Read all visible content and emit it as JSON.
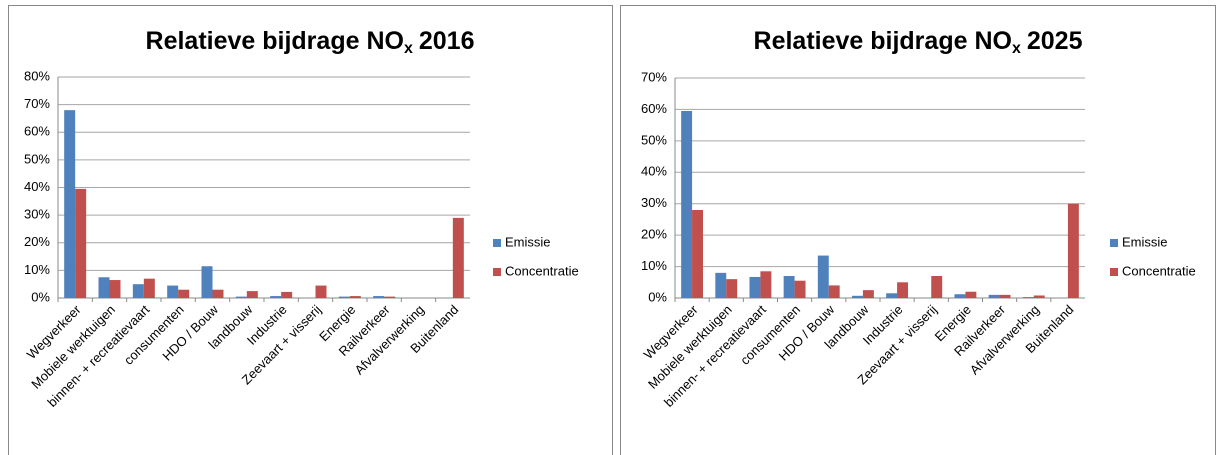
{
  "chart_data": [
    {
      "type": "bar",
      "title": "Relatieve bijdrage NO",
      "title_subscript": "x",
      "title_suffix": "2016",
      "categories": [
        "Wegverkeer",
        "Mobiele werktuigen",
        "binnen- + recreatievaart",
        "consumenten",
        "HDO / Bouw",
        "landbouw",
        "Industrie",
        "Zeevaart + visserij",
        "Energie",
        "Railverkeer",
        "Afvalverwerking",
        "Buitenland"
      ],
      "series": [
        {
          "name": "Emissie",
          "color": "#4f81bd",
          "values": [
            68,
            7.5,
            5,
            4.5,
            11.5,
            0.5,
            0.7,
            0,
            0.5,
            0.7,
            0,
            0
          ]
        },
        {
          "name": "Concentratie",
          "color": "#c0504d",
          "values": [
            39.5,
            6.5,
            7,
            3,
            3,
            2.5,
            2.2,
            4.5,
            0.7,
            0.5,
            0,
            29
          ]
        }
      ],
      "ylim": [
        0,
        80
      ],
      "yticks": [
        {
          "value": 0,
          "label": "0%"
        },
        {
          "value": 10,
          "label": "10%"
        },
        {
          "value": 20,
          "label": "20%"
        },
        {
          "value": 30,
          "label": "30%"
        },
        {
          "value": 40,
          "label": "40%"
        },
        {
          "value": 50,
          "label": "50%"
        },
        {
          "value": 60,
          "label": "60%"
        },
        {
          "value": 70,
          "label": "70%"
        },
        {
          "value": 80,
          "label": "80%"
        }
      ],
      "grid": true,
      "legend": "right"
    },
    {
      "type": "bar",
      "title": "Relatieve bijdrage NO",
      "title_subscript": "x",
      "title_suffix": "2025",
      "categories": [
        "Wegverkeer",
        "Mobiele werktuigen",
        "binnen- + recreatievaart",
        "consumenten",
        "HDO / Bouw",
        "landbouw",
        "Industrie",
        "Zeevaart + visserij",
        "Energie",
        "Railverkeer",
        "Afvalverwerking",
        "Buitenland"
      ],
      "series": [
        {
          "name": "Emissie",
          "color": "#4f81bd",
          "values": [
            59.5,
            8,
            6.7,
            7,
            13.5,
            0.7,
            1.5,
            0,
            1.2,
            1,
            0.3,
            0
          ]
        },
        {
          "name": "Concentratie",
          "color": "#c0504d",
          "values": [
            28,
            6,
            8.5,
            5.5,
            4,
            2.5,
            5,
            7,
            2,
            1,
            0.8,
            30
          ]
        }
      ],
      "ylim": [
        0,
        70
      ],
      "yticks": [
        {
          "value": 0,
          "label": "0%"
        },
        {
          "value": 10,
          "label": "10%"
        },
        {
          "value": 20,
          "label": "20%"
        },
        {
          "value": 30,
          "label": "30%"
        },
        {
          "value": 40,
          "label": "40%"
        },
        {
          "value": 50,
          "label": "50%"
        },
        {
          "value": 60,
          "label": "60%"
        },
        {
          "value": 70,
          "label": "70%"
        }
      ],
      "grid": true,
      "legend": "right"
    }
  ]
}
